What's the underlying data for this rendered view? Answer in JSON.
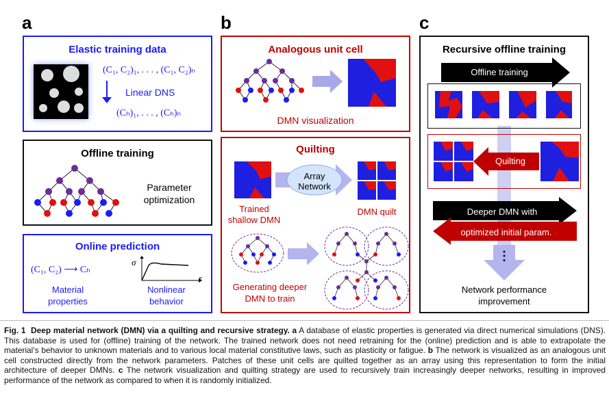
{
  "panels": {
    "a": {
      "label": "a",
      "elastic": {
        "title": "Elastic training data",
        "math_top": "(C₁, C₂)₁, . . . , (C₁, C₂)ₙ",
        "method": "Linear DNS",
        "math_bottom": "(Cₕ)₁, . . . , (Cₕ)ₙ"
      },
      "offline": {
        "title": "Offline training",
        "text_line1": "Parameter",
        "text_line2": "optimization"
      },
      "online": {
        "title": "Online prediction",
        "math": "(C₁, C₂) ⟶ Cₕ",
        "left_line1": "Material",
        "left_line2": "properties",
        "right_line1": "Nonlinear",
        "right_line2": "behavior",
        "axis_y": "σ",
        "axis_x": "ε"
      }
    },
    "b": {
      "label": "b",
      "unit_cell": {
        "title": "Analogous unit cell",
        "caption": "DMN visualization"
      },
      "quilting": {
        "title": "Quilting",
        "array_line1": "Array",
        "array_line2": "Network",
        "trained_line1": "Trained",
        "trained_line2": "shallow DMN",
        "quilt": "DMN quilt",
        "gen_line1": "Generating deeper",
        "gen_line2": "DMN to train"
      }
    },
    "c": {
      "label": "c",
      "title": "Recursive offline training",
      "offline_arrow": "Offline training",
      "quilting_arrow": "Quilting",
      "deeper_arrow": "Deeper DMN with",
      "param_arrow": "optimized initial param.",
      "dots": "⋮",
      "perf_line1": "Network performance",
      "perf_line2": "improvement"
    }
  },
  "caption": {
    "fig_label": "Fig. 1",
    "fig_title": "Deep material network (DMN) via a quilting and recursive strategy.",
    "a_label": "a",
    "a_text": " A database of elastic properties is generated via direct numerical simulations (DNS). This database is used for (offline) training of the network. The trained network does not need retraining for the (online) prediction and is able to extrapolate the material’s behavior to unknown materials and to various local material constitutive laws, such as plasticity or fatigue. ",
    "b_label": "b",
    "b_text": " The network is visualized as an analogous unit cell constructed directly from the network parameters. Patches of these unit cells are quilted together as an array using this representation to form the initial architecture of deeper DMNs. ",
    "c_label": "c",
    "c_text": " The network visualization and quilting strategy are used to recursively train increasingly deeper networks, resulting in improved performance of the network as compared to when it is randomly initialized."
  },
  "colors": {
    "blue": "#1a1aff",
    "red": "#c00000",
    "purple": "#6a2c9a",
    "cell_blue": "#1f1fe0",
    "cell_red": "#e01010"
  }
}
